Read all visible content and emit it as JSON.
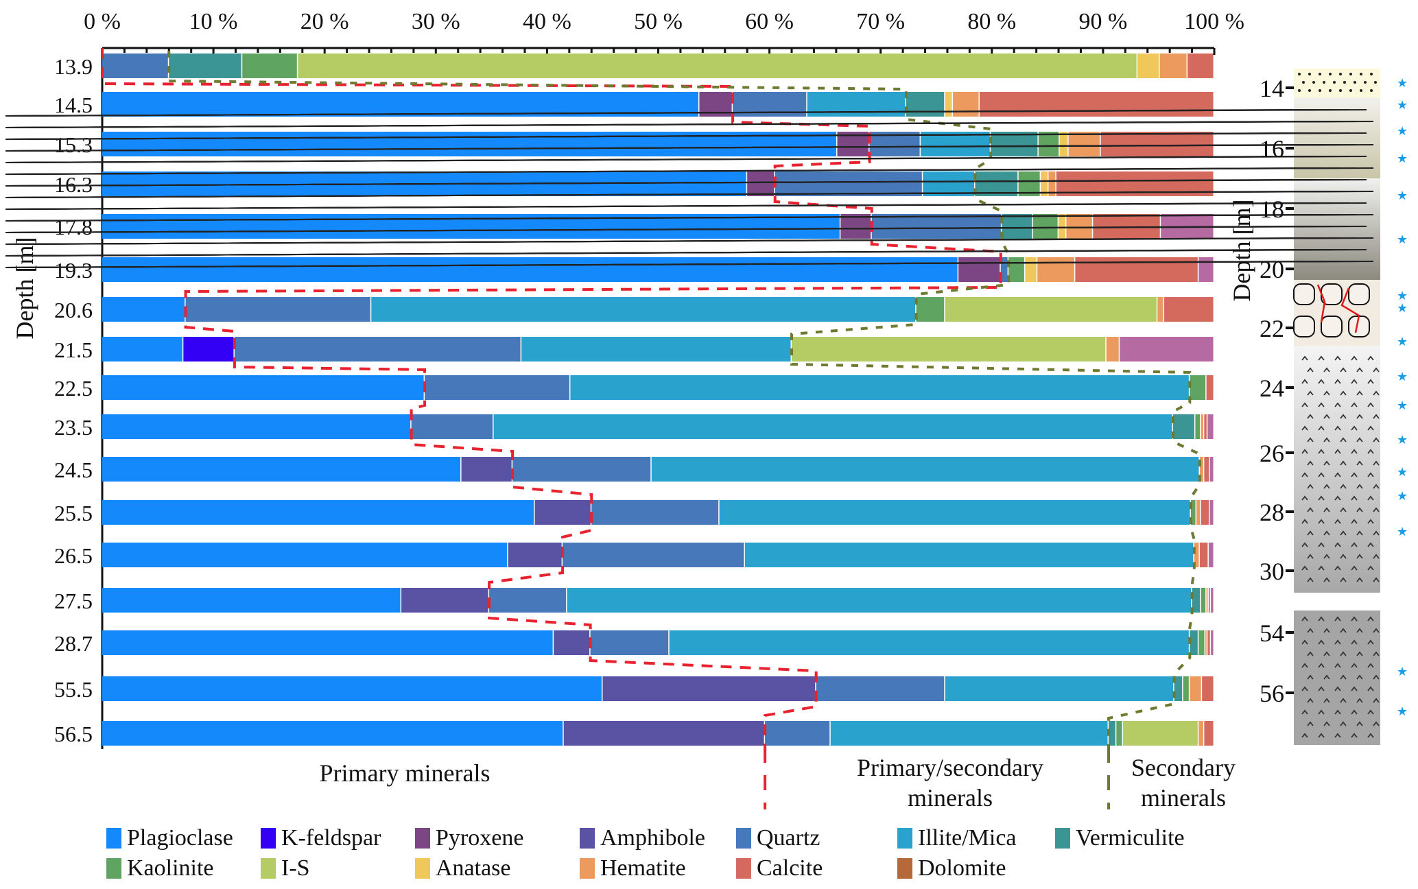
{
  "chart_data": {
    "type": "bar",
    "orientation": "horizontal-stacked-100",
    "ylabel": "Depth [m]",
    "x_ticks": [
      "0 %",
      "10 %",
      "20 %",
      "30 %",
      "40 %",
      "50 %",
      "60 %",
      "70 %",
      "80 %",
      "90 %",
      "100 %"
    ],
    "xlim": [
      0,
      100
    ],
    "minerals": [
      {
        "name": "Plagioclase",
        "color": "#1389fb"
      },
      {
        "name": "K-feldspar",
        "color": "#3300f5"
      },
      {
        "name": "Pyroxene",
        "color": "#7b4683"
      },
      {
        "name": "Amphibole",
        "color": "#5a52a2"
      },
      {
        "name": "Quartz",
        "color": "#4779ba"
      },
      {
        "name": "Illite/Mica",
        "color": "#29a2cd"
      },
      {
        "name": "Vermiculite",
        "color": "#3b9595"
      },
      {
        "name": "Kaolinite",
        "color": "#5fa461"
      },
      {
        "name": "I-S",
        "color": "#b5cc64"
      },
      {
        "name": "Anatase",
        "color": "#f0c75a"
      },
      {
        "name": "Hematite",
        "color": "#ec9a5e"
      },
      {
        "name": "Calcite",
        "color": "#d4695e"
      },
      {
        "name": "Dolomite",
        "color": "#b5693a",
        "bar_color": "#b56aa2"
      }
    ],
    "categories": [
      "13.9",
      "14.5",
      "15.3",
      "16.3",
      "17.8",
      "19.3",
      "20.6",
      "21.5",
      "22.5",
      "23.5",
      "24.5",
      "25.5",
      "26.5",
      "27.5",
      "28.7",
      "55.5",
      "56.5"
    ],
    "rows": [
      {
        "depth": "13.9",
        "segments": [
          [
            "Quartz",
            6.0
          ],
          [
            "Vermiculite",
            6.6
          ],
          [
            "Kaolinite",
            5.0
          ],
          [
            "I-S",
            75.5
          ],
          [
            "Anatase",
            2.0
          ],
          [
            "Hematite",
            2.5
          ],
          [
            "Calcite",
            2.4
          ]
        ]
      },
      {
        "depth": "14.5",
        "segments": [
          [
            "Plagioclase",
            53.7
          ],
          [
            "Pyroxene",
            3.0
          ],
          [
            "Quartz",
            6.7
          ],
          [
            "Illite/Mica",
            8.9
          ],
          [
            "Vermiculite",
            3.5
          ],
          [
            "Anatase",
            0.7
          ],
          [
            "Hematite",
            2.4
          ],
          [
            "Calcite",
            21.1
          ]
        ]
      },
      {
        "depth": "15.3",
        "segments": [
          [
            "Plagioclase",
            66.1
          ],
          [
            "Pyroxene",
            2.9
          ],
          [
            "Quartz",
            4.6
          ],
          [
            "Illite/Mica",
            6.3
          ],
          [
            "Vermiculite",
            4.3
          ],
          [
            "Kaolinite",
            1.9
          ],
          [
            "Anatase",
            0.8
          ],
          [
            "Hematite",
            2.9
          ],
          [
            "Calcite",
            10.2
          ]
        ]
      },
      {
        "depth": "16.3",
        "segments": [
          [
            "Plagioclase",
            58.0
          ],
          [
            "Pyroxene",
            2.5
          ],
          [
            "Quartz",
            13.3
          ],
          [
            "Illite/Mica",
            4.7
          ],
          [
            "Vermiculite",
            3.9
          ],
          [
            "Kaolinite",
            2.0
          ],
          [
            "Anatase",
            0.7
          ],
          [
            "Hematite",
            0.7
          ],
          [
            "Calcite",
            14.2
          ]
        ]
      },
      {
        "depth": "17.8",
        "segments": [
          [
            "Plagioclase",
            66.4
          ],
          [
            "Pyroxene",
            2.8
          ],
          [
            "Quartz",
            11.7
          ],
          [
            "Vermiculite",
            2.8
          ],
          [
            "Kaolinite",
            2.3
          ],
          [
            "Anatase",
            0.7
          ],
          [
            "Hematite",
            2.4
          ],
          [
            "Calcite",
            6.1
          ],
          [
            "Dolomite",
            4.8
          ]
        ]
      },
      {
        "depth": "19.3",
        "segments": [
          [
            "Plagioclase",
            77.0
          ],
          [
            "Pyroxene",
            3.8
          ],
          [
            "Quartz",
            0.7
          ],
          [
            "Kaolinite",
            1.5
          ],
          [
            "Anatase",
            1.1
          ],
          [
            "Hematite",
            3.4
          ],
          [
            "Calcite",
            11.1
          ],
          [
            "Dolomite",
            1.4
          ]
        ]
      },
      {
        "depth": "20.6",
        "segments": [
          [
            "Plagioclase",
            7.5
          ],
          [
            "Quartz",
            16.7
          ],
          [
            "Illite/Mica",
            49.0
          ],
          [
            "Kaolinite",
            2.6
          ],
          [
            "I-S",
            19.1
          ],
          [
            "Hematite",
            0.6
          ],
          [
            "Calcite",
            4.5
          ]
        ]
      },
      {
        "depth": "21.5",
        "segments": [
          [
            "Plagioclase",
            7.3
          ],
          [
            "K-feldspar",
            4.6
          ],
          [
            "Quartz",
            25.8
          ],
          [
            "Illite/Mica",
            24.3
          ],
          [
            "I-S",
            28.3
          ],
          [
            "Hematite",
            1.2
          ],
          [
            "Dolomite",
            8.5
          ]
        ]
      },
      {
        "depth": "22.5",
        "segments": [
          [
            "Plagioclase",
            29.0
          ],
          [
            "Quartz",
            13.1
          ],
          [
            "Illite/Mica",
            55.7
          ],
          [
            "Kaolinite",
            1.5
          ],
          [
            "Calcite",
            0.7
          ]
        ]
      },
      {
        "depth": "23.5",
        "segments": [
          [
            "Plagioclase",
            27.8
          ],
          [
            "Quartz",
            7.4
          ],
          [
            "Illite/Mica",
            61.1
          ],
          [
            "Vermiculite",
            2.0
          ],
          [
            "Kaolinite",
            0.5
          ],
          [
            "Hematite",
            0.3
          ],
          [
            "Calcite",
            0.3
          ],
          [
            "Dolomite",
            0.6
          ]
        ]
      },
      {
        "depth": "24.5",
        "segments": [
          [
            "Plagioclase",
            32.3
          ],
          [
            "Amphibole",
            4.6
          ],
          [
            "Quartz",
            12.5
          ],
          [
            "Illite/Mica",
            49.3
          ],
          [
            "Hematite",
            0.4
          ],
          [
            "Calcite",
            0.5
          ],
          [
            "Dolomite",
            0.4
          ]
        ]
      },
      {
        "depth": "25.5",
        "segments": [
          [
            "Plagioclase",
            38.9
          ],
          [
            "Amphibole",
            5.1
          ],
          [
            "Quartz",
            11.5
          ],
          [
            "Illite/Mica",
            42.4
          ],
          [
            "Kaolinite",
            0.5
          ],
          [
            "Hematite",
            0.4
          ],
          [
            "Calcite",
            0.8
          ],
          [
            "Dolomite",
            0.4
          ]
        ]
      },
      {
        "depth": "26.5",
        "segments": [
          [
            "Plagioclase",
            36.5
          ],
          [
            "Amphibole",
            4.9
          ],
          [
            "Quartz",
            16.4
          ],
          [
            "Illite/Mica",
            40.4
          ],
          [
            "Hematite",
            0.5
          ],
          [
            "Calcite",
            0.8
          ],
          [
            "Dolomite",
            0.5
          ]
        ]
      },
      {
        "depth": "27.5",
        "segments": [
          [
            "Plagioclase",
            26.9
          ],
          [
            "Amphibole",
            7.9
          ],
          [
            "Quartz",
            7.0
          ],
          [
            "Illite/Mica",
            56.2
          ],
          [
            "Vermiculite",
            0.8
          ],
          [
            "Kaolinite",
            0.5
          ],
          [
            "Hematite",
            0.2
          ],
          [
            "Calcite",
            0.2
          ],
          [
            "Dolomite",
            0.3
          ]
        ]
      },
      {
        "depth": "28.7",
        "segments": [
          [
            "Plagioclase",
            40.6
          ],
          [
            "Amphibole",
            3.3
          ],
          [
            "Quartz",
            7.1
          ],
          [
            "Illite/Mica",
            46.8
          ],
          [
            "Vermiculite",
            0.8
          ],
          [
            "Kaolinite",
            0.6
          ],
          [
            "Hematite",
            0.2
          ],
          [
            "Calcite",
            0.3
          ],
          [
            "Dolomite",
            0.3
          ]
        ]
      },
      {
        "depth": "55.5",
        "segments": [
          [
            "Plagioclase",
            45.0
          ],
          [
            "Amphibole",
            19.2
          ],
          [
            "Quartz",
            11.6
          ],
          [
            "Illite/Mica",
            20.6
          ],
          [
            "Vermiculite",
            0.8
          ],
          [
            "Kaolinite",
            0.6
          ],
          [
            "Hematite",
            1.1
          ],
          [
            "Calcite",
            1.1
          ]
        ]
      },
      {
        "depth": "56.5",
        "segments": [
          [
            "Plagioclase",
            41.5
          ],
          [
            "Amphibole",
            18.1
          ],
          [
            "Quartz",
            5.9
          ],
          [
            "Illite/Mica",
            25.0
          ],
          [
            "Vermiculite",
            0.7
          ],
          [
            "Kaolinite",
            0.6
          ],
          [
            "I-S",
            6.8
          ],
          [
            "Hematite",
            0.5
          ],
          [
            "Calcite",
            0.9
          ]
        ]
      }
    ],
    "group_labels": [
      "Primary minerals",
      "Primary/secondary minerals",
      "Secondary minerals"
    ],
    "boundary_colors": {
      "primary": "#e8222e",
      "secondary": "#6e7a30"
    },
    "column": {
      "ylabel": "Depth [m]",
      "ticks": [
        "14",
        "16",
        "18",
        "20",
        "22",
        "24",
        "26",
        "28",
        "30",
        "54",
        "56"
      ],
      "sample_marker_color": "#1a9be8",
      "sample_depths": [
        13.9,
        14.5,
        15.3,
        16.3,
        17.8,
        19.3,
        20.6,
        21.5,
        22.5,
        23.5,
        24.5,
        25.5,
        26.5,
        27.5,
        28.7,
        55.5,
        56.5
      ]
    },
    "legend_position": "bottom"
  }
}
